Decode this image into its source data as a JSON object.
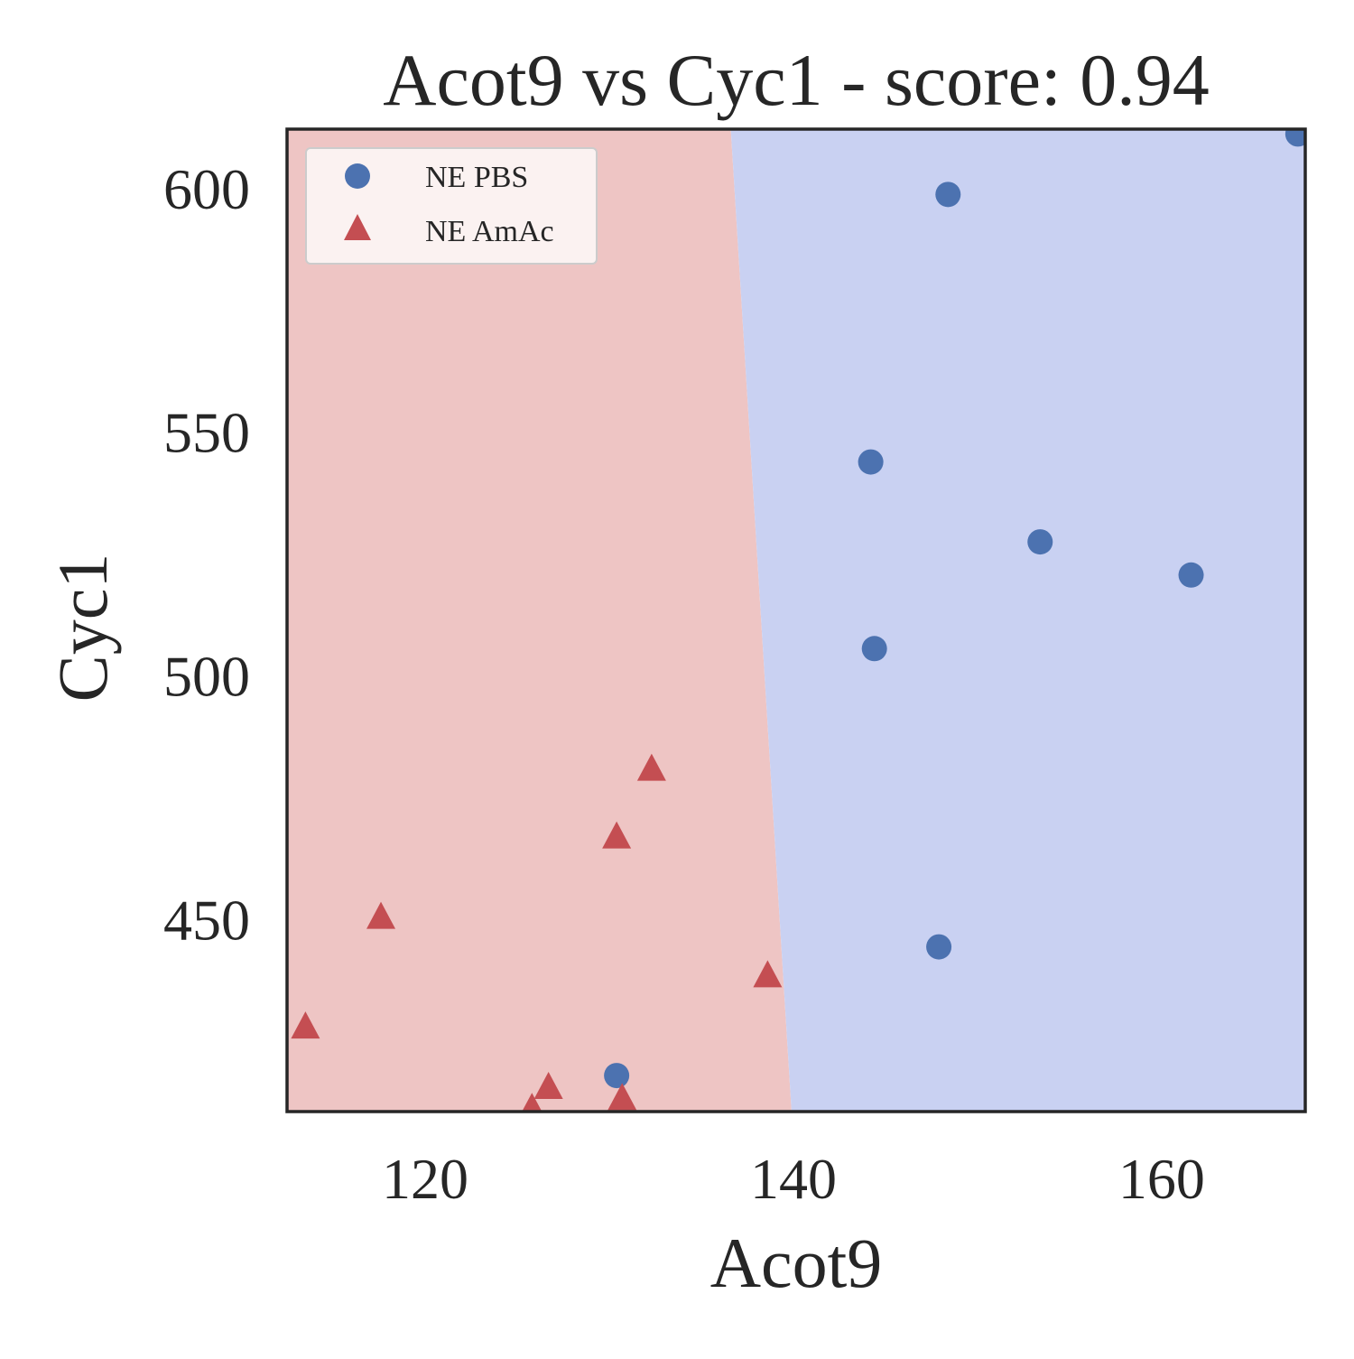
{
  "chart_data": {
    "type": "scatter",
    "title": "Acot9 vs Cyc1 - score: 0.94",
    "xlabel": "Acot9",
    "ylabel": "Cyc1",
    "xlim": [
      112.5,
      167.8
    ],
    "ylim": [
      410.6,
      612.2
    ],
    "xticks": [
      120,
      140,
      160
    ],
    "yticks": [
      450,
      500,
      550,
      600
    ],
    "xtick_labels": [
      "120",
      "140",
      "160"
    ],
    "ytick_labels": [
      "450",
      "500",
      "550",
      "600"
    ],
    "grid": false,
    "legend_position": "top-left",
    "decision_regions": {
      "boundary": [
        [
          136.6,
          612.2
        ],
        [
          139.9,
          410.6
        ]
      ],
      "left_class": "NE AmAc",
      "right_class": "NE PBS",
      "left_color": "#eec5c4",
      "right_color": "#c9d1f2"
    },
    "series": [
      {
        "name": "NE PBS",
        "marker": "circle",
        "color": "#4c72b0",
        "points": [
          [
            167.4,
            611.2
          ],
          [
            148.4,
            598.8
          ],
          [
            144.2,
            543.9
          ],
          [
            153.4,
            527.5
          ],
          [
            161.6,
            520.7
          ],
          [
            144.4,
            505.6
          ],
          [
            147.9,
            444.4
          ],
          [
            130.4,
            418.0
          ]
        ]
      },
      {
        "name": "NE AmAc",
        "marker": "triangle",
        "color": "#c44e52",
        "points": [
          [
            132.3,
            480.9
          ],
          [
            130.4,
            467.0
          ],
          [
            117.6,
            450.5
          ],
          [
            138.6,
            438.5
          ],
          [
            113.5,
            428.0
          ],
          [
            126.7,
            415.6
          ],
          [
            130.7,
            413.3
          ],
          [
            125.8,
            411.3
          ]
        ]
      }
    ]
  }
}
